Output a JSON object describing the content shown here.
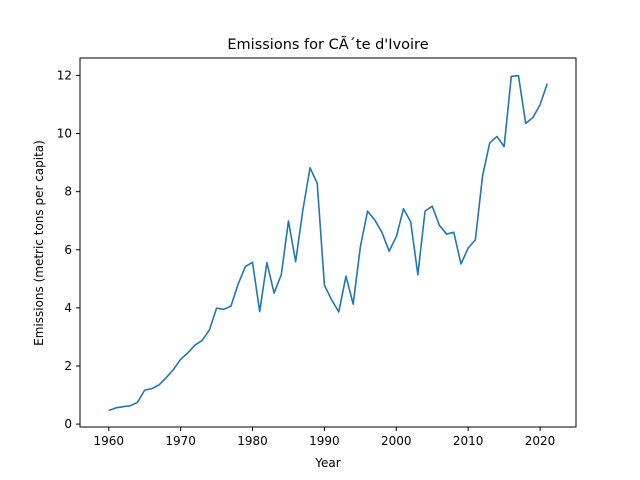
{
  "chart_data": {
    "type": "line",
    "title": "Emissions for CÃ´te d'Ivoire",
    "xlabel": "Year",
    "ylabel": "Emissions (metric tons per capita)",
    "xlim": [
      1956,
      2025
    ],
    "ylim": [
      -0.1,
      12.6
    ],
    "xticks": [
      1960,
      1970,
      1980,
      1990,
      2000,
      2010,
      2020
    ],
    "yticks": [
      0,
      2,
      4,
      6,
      8,
      10,
      12
    ],
    "grid": false,
    "legend": "none",
    "color": "#1f77b4",
    "series": [
      {
        "x": [
          1960,
          1961,
          1962,
          1963,
          1964,
          1965,
          1966,
          1967,
          1968,
          1969,
          1970,
          1971,
          1972,
          1973,
          1974,
          1975,
          1976,
          1977,
          1978,
          1979,
          1980,
          1981,
          1982,
          1983,
          1984,
          1985,
          1986,
          1987,
          1988,
          1989,
          1990,
          1991,
          1992,
          1993,
          1994,
          1995,
          1996,
          1997,
          1998,
          1999,
          2000,
          2001,
          2002,
          2003,
          2004,
          2005,
          2006,
          2007,
          2008,
          2009,
          2010,
          2011,
          2012,
          2013,
          2014,
          2015,
          2016,
          2017,
          2018,
          2019,
          2020,
          2021
        ],
        "values": [
          0.47,
          0.56,
          0.6,
          0.63,
          0.75,
          1.17,
          1.22,
          1.35,
          1.6,
          1.88,
          2.23,
          2.45,
          2.72,
          2.88,
          3.24,
          3.99,
          3.95,
          4.06,
          4.82,
          5.42,
          5.57,
          3.87,
          5.56,
          4.51,
          5.14,
          6.99,
          5.59,
          7.36,
          8.82,
          8.29,
          4.78,
          4.28,
          3.86,
          5.09,
          4.13,
          6.1,
          7.33,
          7.03,
          6.6,
          5.95,
          6.45,
          7.41,
          6.96,
          5.14,
          7.33,
          7.5,
          6.84,
          6.54,
          6.6,
          5.51,
          6.06,
          6.34,
          8.54,
          9.68,
          9.9,
          9.55,
          11.97,
          11.99,
          10.35,
          10.55,
          10.99,
          11.72
        ]
      }
    ]
  }
}
